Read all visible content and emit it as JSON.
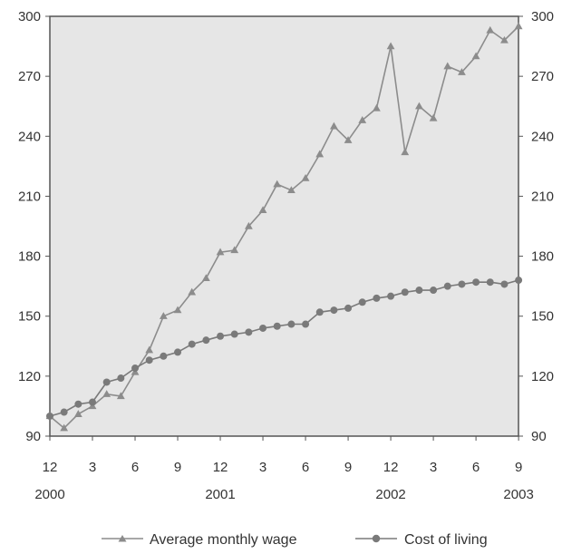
{
  "chart_data": {
    "type": "line",
    "title": "",
    "xlabel": "",
    "ylabel": "",
    "ylim": [
      90,
      300
    ],
    "yticks": [
      90,
      120,
      150,
      180,
      210,
      240,
      270,
      300
    ],
    "right_axis_mirrors_left": true,
    "grid": false,
    "legend_position": "bottom",
    "x": [
      "2000-12",
      "2001-01",
      "2001-02",
      "2001-03",
      "2001-04",
      "2001-05",
      "2001-06",
      "2001-07",
      "2001-08",
      "2001-09",
      "2001-10",
      "2001-11",
      "2001-12",
      "2002-01",
      "2002-02",
      "2002-03",
      "2002-04",
      "2002-05",
      "2002-06",
      "2002-07",
      "2002-08",
      "2002-09",
      "2002-10",
      "2002-11",
      "2002-12",
      "2003-01",
      "2003-02",
      "2003-03",
      "2003-04",
      "2003-05",
      "2003-06",
      "2003-07",
      "2003-08",
      "2003-09"
    ],
    "xtick_labels": [
      {
        "month": "12",
        "year": "2000"
      },
      {
        "month": "3",
        "year": ""
      },
      {
        "month": "6",
        "year": ""
      },
      {
        "month": "9",
        "year": ""
      },
      {
        "month": "12",
        "year": "2001"
      },
      {
        "month": "3",
        "year": ""
      },
      {
        "month": "6",
        "year": ""
      },
      {
        "month": "9",
        "year": ""
      },
      {
        "month": "12",
        "year": "2002"
      },
      {
        "month": "3",
        "year": ""
      },
      {
        "month": "6",
        "year": ""
      },
      {
        "month": "9",
        "year": "2003"
      }
    ],
    "series": [
      {
        "name": "Average monthly wage",
        "marker": "triangle",
        "color": "#8c8c8c",
        "values": [
          100,
          94,
          101,
          105,
          111,
          110,
          122,
          133,
          150,
          153,
          162,
          169,
          182,
          183,
          195,
          203,
          216,
          213,
          219,
          231,
          245,
          238,
          248,
          254,
          285,
          232,
          255,
          249,
          275,
          272,
          280,
          293,
          288,
          295
        ]
      },
      {
        "name": "Cost of living",
        "marker": "circle",
        "color": "#7a7a7a",
        "values": [
          100,
          102,
          106,
          107,
          117,
          119,
          124,
          128,
          130,
          132,
          136,
          138,
          140,
          141,
          142,
          144,
          145,
          146,
          146,
          152,
          153,
          154,
          157,
          159,
          160,
          162,
          163,
          163,
          165,
          166,
          167,
          167,
          166,
          168
        ]
      }
    ],
    "colors": {
      "plot_background": "#e6e6e6",
      "axis": "#555555",
      "text": "#333333"
    }
  }
}
